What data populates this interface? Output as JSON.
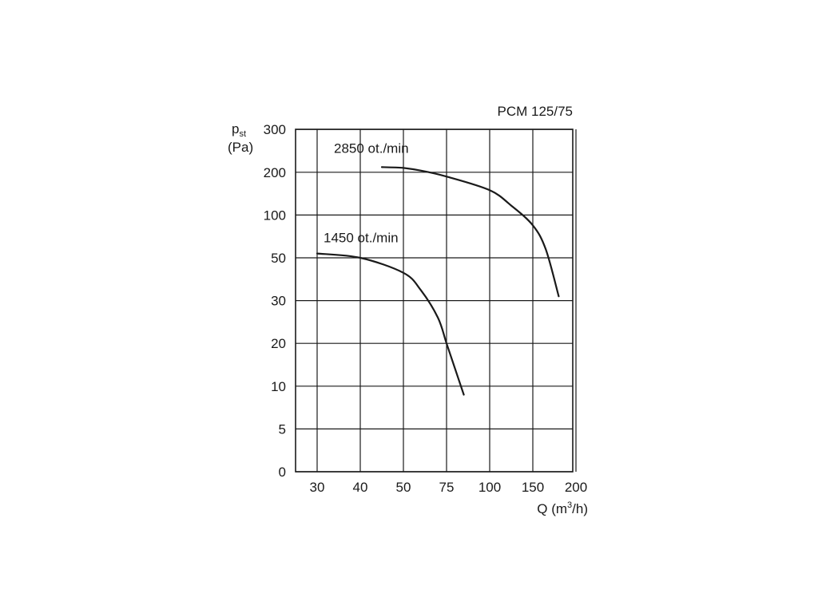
{
  "chart_data": {
    "type": "line",
    "title": "PCM 125/75",
    "ylabel": "p",
    "ylabel_sub": "st",
    "yunit": "(Pa)",
    "xlabel_pre": "Q (m",
    "xlabel_sup": "3",
    "xlabel_post": "/h)",
    "x_ticks": [
      "30",
      "40",
      "50",
      "75",
      "100",
      "150",
      "200"
    ],
    "y_ticks": [
      "0",
      "5",
      "10",
      "20",
      "30",
      "50",
      "100",
      "200",
      "300"
    ],
    "grid": true,
    "series": [
      {
        "name": "2850 ot./min",
        "points": [
          [
            45,
            212
          ],
          [
            50,
            210
          ],
          [
            60,
            204
          ],
          [
            75,
            190
          ],
          [
            100,
            158
          ],
          [
            125,
            122
          ],
          [
            150,
            88
          ],
          [
            165,
            60
          ],
          [
            180,
            32
          ]
        ]
      },
      {
        "name": "1450 ot./min",
        "points": [
          [
            30,
            55
          ],
          [
            40,
            50
          ],
          [
            50,
            43
          ],
          [
            60,
            35
          ],
          [
            70,
            26
          ],
          [
            75,
            20
          ],
          [
            80,
            14
          ],
          [
            85,
            9
          ]
        ]
      }
    ]
  }
}
